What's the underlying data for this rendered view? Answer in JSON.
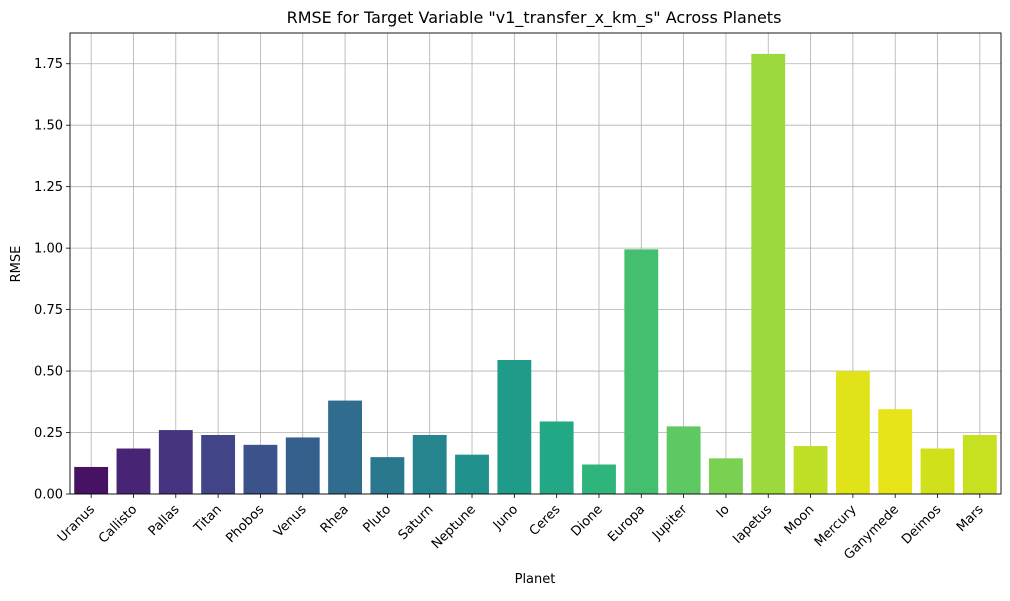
{
  "chart_data": {
    "type": "bar",
    "title": "RMSE for Target Variable \"v1_transfer_x_km_s\" Across Planets",
    "xlabel": "Planet",
    "ylabel": "RMSE",
    "ylim": [
      0,
      1.875
    ],
    "yticks": [
      0.0,
      0.25,
      0.5,
      0.75,
      1.0,
      1.25,
      1.5,
      1.75
    ],
    "ytick_labels": [
      "0.00",
      "0.25",
      "0.50",
      "0.75",
      "1.00",
      "1.25",
      "1.50",
      "1.75"
    ],
    "grid": true,
    "categories": [
      "Uranus",
      "Callisto",
      "Pallas",
      "Titan",
      "Phobos",
      "Venus",
      "Rhea",
      "Pluto",
      "Saturn",
      "Neptune",
      "Juno",
      "Ceres",
      "Dione",
      "Europa",
      "Jupiter",
      "Io",
      "Iapetus",
      "Moon",
      "Mercury",
      "Ganymede",
      "Deimos",
      "Mars"
    ],
    "values": [
      0.11,
      0.185,
      0.26,
      0.24,
      0.2,
      0.23,
      0.38,
      0.15,
      0.24,
      0.16,
      0.545,
      0.295,
      0.12,
      0.995,
      0.275,
      0.145,
      1.79,
      0.195,
      0.5,
      0.345,
      0.185,
      0.24
    ],
    "colors": [
      "#471164",
      "#482475",
      "#463480",
      "#414487",
      "#3b528b",
      "#355f8d",
      "#2f6c8e",
      "#2a788e",
      "#25848e",
      "#21918c",
      "#1e9c89",
      "#22a884",
      "#2fb47c",
      "#44bf70",
      "#5ec962",
      "#7ad151",
      "#9bd93c",
      "#bddf26",
      "#dfe318",
      "#e6e419",
      "#d0e11c",
      "#c7e020"
    ]
  }
}
